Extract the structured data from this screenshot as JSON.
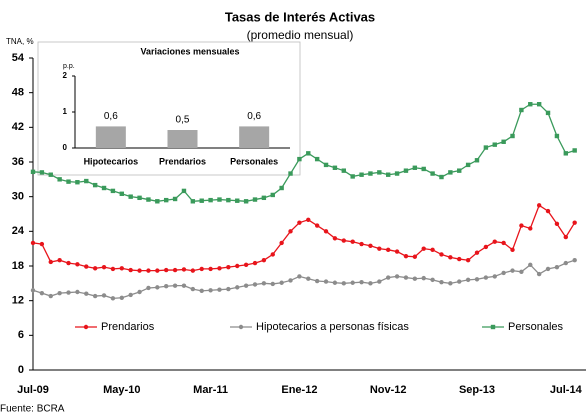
{
  "chart_data": [
    {
      "type": "line",
      "title": "Tasas de Interés Activas",
      "subtitle": "(promedio mensual)",
      "y_label": "TNA, %",
      "source": "Fuente: BCRA",
      "categories": [
        "Jul-09",
        null,
        null,
        null,
        null,
        null,
        null,
        null,
        null,
        null,
        "May-10",
        null,
        null,
        null,
        null,
        null,
        null,
        null,
        null,
        null,
        "Mar-11",
        null,
        null,
        null,
        null,
        null,
        null,
        null,
        null,
        null,
        "Ene-12",
        null,
        null,
        null,
        null,
        null,
        null,
        null,
        null,
        null,
        "Nov-12",
        null,
        null,
        null,
        null,
        null,
        null,
        null,
        null,
        null,
        "Sep-13",
        null,
        null,
        null,
        null,
        null,
        null,
        null,
        null,
        null,
        "Jul-14",
        null
      ],
      "ylim": [
        0,
        54
      ],
      "yticks": [
        0,
        6,
        12,
        18,
        24,
        30,
        36,
        42,
        48,
        54
      ],
      "legend": "bottom",
      "series": [
        {
          "name": "Prendarios",
          "color": "#e8141b",
          "marker": "circle",
          "values": [
            22.0,
            21.8,
            18.7,
            19.0,
            18.5,
            18.3,
            17.9,
            17.6,
            17.8,
            17.5,
            17.6,
            17.3,
            17.2,
            17.2,
            17.2,
            17.3,
            17.3,
            17.4,
            17.2,
            17.5,
            17.5,
            17.6,
            17.8,
            18.0,
            18.2,
            18.5,
            19.0,
            20.0,
            22.0,
            24.0,
            25.5,
            26.0,
            25.0,
            24.0,
            22.8,
            22.4,
            22.2,
            21.8,
            21.5,
            21.0,
            20.8,
            20.5,
            19.7,
            19.6,
            21.0,
            20.8,
            20.0,
            19.5,
            19.2,
            19.0,
            20.3,
            21.3,
            22.2,
            22.0,
            20.8,
            25.0,
            24.5,
            28.5,
            27.5,
            25.3,
            23.0,
            25.5
          ]
        },
        {
          "name": "Hipotecarios a personas físicas",
          "color": "#8c8c8c",
          "marker": "circle",
          "values": [
            13.8,
            13.3,
            12.8,
            13.3,
            13.4,
            13.5,
            13.2,
            12.8,
            12.9,
            12.4,
            12.5,
            13.0,
            13.5,
            14.2,
            14.3,
            14.5,
            14.6,
            14.6,
            14.0,
            13.7,
            13.8,
            13.9,
            14.0,
            14.3,
            14.6,
            14.8,
            15.0,
            14.9,
            15.1,
            15.5,
            16.2,
            15.8,
            15.4,
            15.3,
            15.1,
            15.0,
            15.1,
            15.2,
            15.0,
            15.3,
            16.0,
            16.2,
            16.0,
            15.8,
            15.9,
            15.6,
            15.2,
            15.0,
            15.3,
            15.6,
            15.7,
            16.0,
            16.2,
            16.8,
            17.2,
            17.0,
            18.2,
            16.6,
            17.5,
            17.8,
            18.5,
            19.0
          ]
        },
        {
          "name": "Personales",
          "color": "#3a9a5b",
          "marker": "square",
          "values": [
            34.3,
            34.2,
            33.8,
            33.0,
            32.6,
            32.5,
            32.7,
            32.0,
            31.5,
            31.0,
            30.5,
            30.0,
            29.8,
            29.5,
            29.2,
            29.4,
            29.6,
            31.0,
            29.2,
            29.3,
            29.4,
            29.5,
            29.4,
            29.3,
            29.2,
            29.5,
            29.8,
            30.3,
            31.5,
            34.0,
            36.5,
            37.5,
            36.5,
            35.5,
            35.0,
            34.5,
            33.5,
            33.8,
            34.0,
            34.2,
            33.8,
            34.0,
            34.5,
            35.0,
            34.8,
            34.0,
            33.4,
            34.2,
            34.5,
            35.5,
            36.3,
            38.5,
            39.0,
            39.5,
            40.5,
            45.0,
            46.0,
            46.0,
            44.5,
            40.5,
            37.5,
            38.0
          ]
        }
      ]
    },
    {
      "type": "bar",
      "title": "Variaciones mensuales",
      "y_label": "p.p.",
      "categories": [
        "Hipotecarios",
        "Prendarios",
        "Personales"
      ],
      "values": [
        0.6,
        0.5,
        0.6
      ],
      "value_labels": [
        "0,6",
        "0,5",
        "0,6"
      ],
      "color": "#a6a6a6",
      "ylim": [
        0,
        2
      ],
      "yticks": [
        0,
        1,
        2
      ]
    }
  ]
}
